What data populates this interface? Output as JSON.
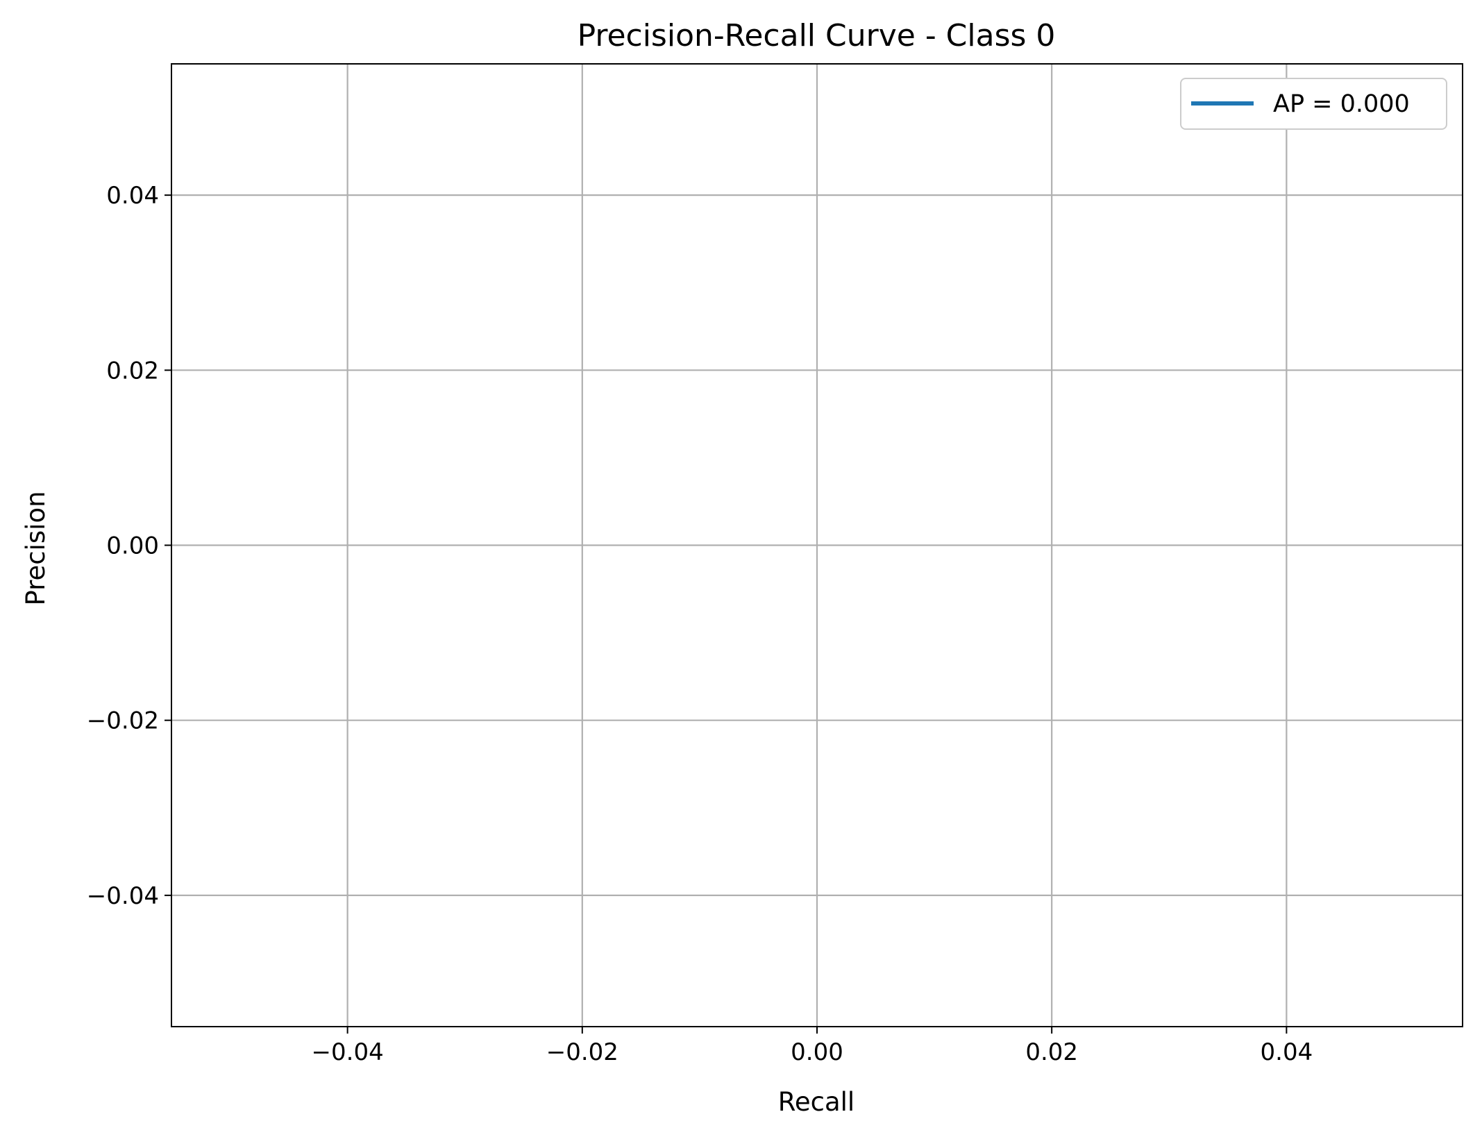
{
  "chart_data": {
    "type": "line",
    "title": "Precision-Recall Curve - Class 0",
    "xlabel": "Recall",
    "ylabel": "Precision",
    "xlim": [
      -0.055,
      0.055
    ],
    "ylim": [
      -0.055,
      0.055
    ],
    "xticks": [
      -0.04,
      -0.02,
      0.0,
      0.02,
      0.04
    ],
    "xtick_labels": [
      "−0.04",
      "−0.02",
      "0.00",
      "0.02",
      "0.04"
    ],
    "yticks": [
      0.04,
      0.02,
      0.0,
      -0.02,
      -0.04
    ],
    "ytick_labels": [
      "0.04",
      "0.02",
      "0.00",
      "−0.02",
      "−0.04"
    ],
    "grid": true,
    "legend_position": "top-right",
    "series": [
      {
        "name": "AP = 0.000",
        "color": "#1f77b4",
        "x": [],
        "y": []
      }
    ]
  }
}
